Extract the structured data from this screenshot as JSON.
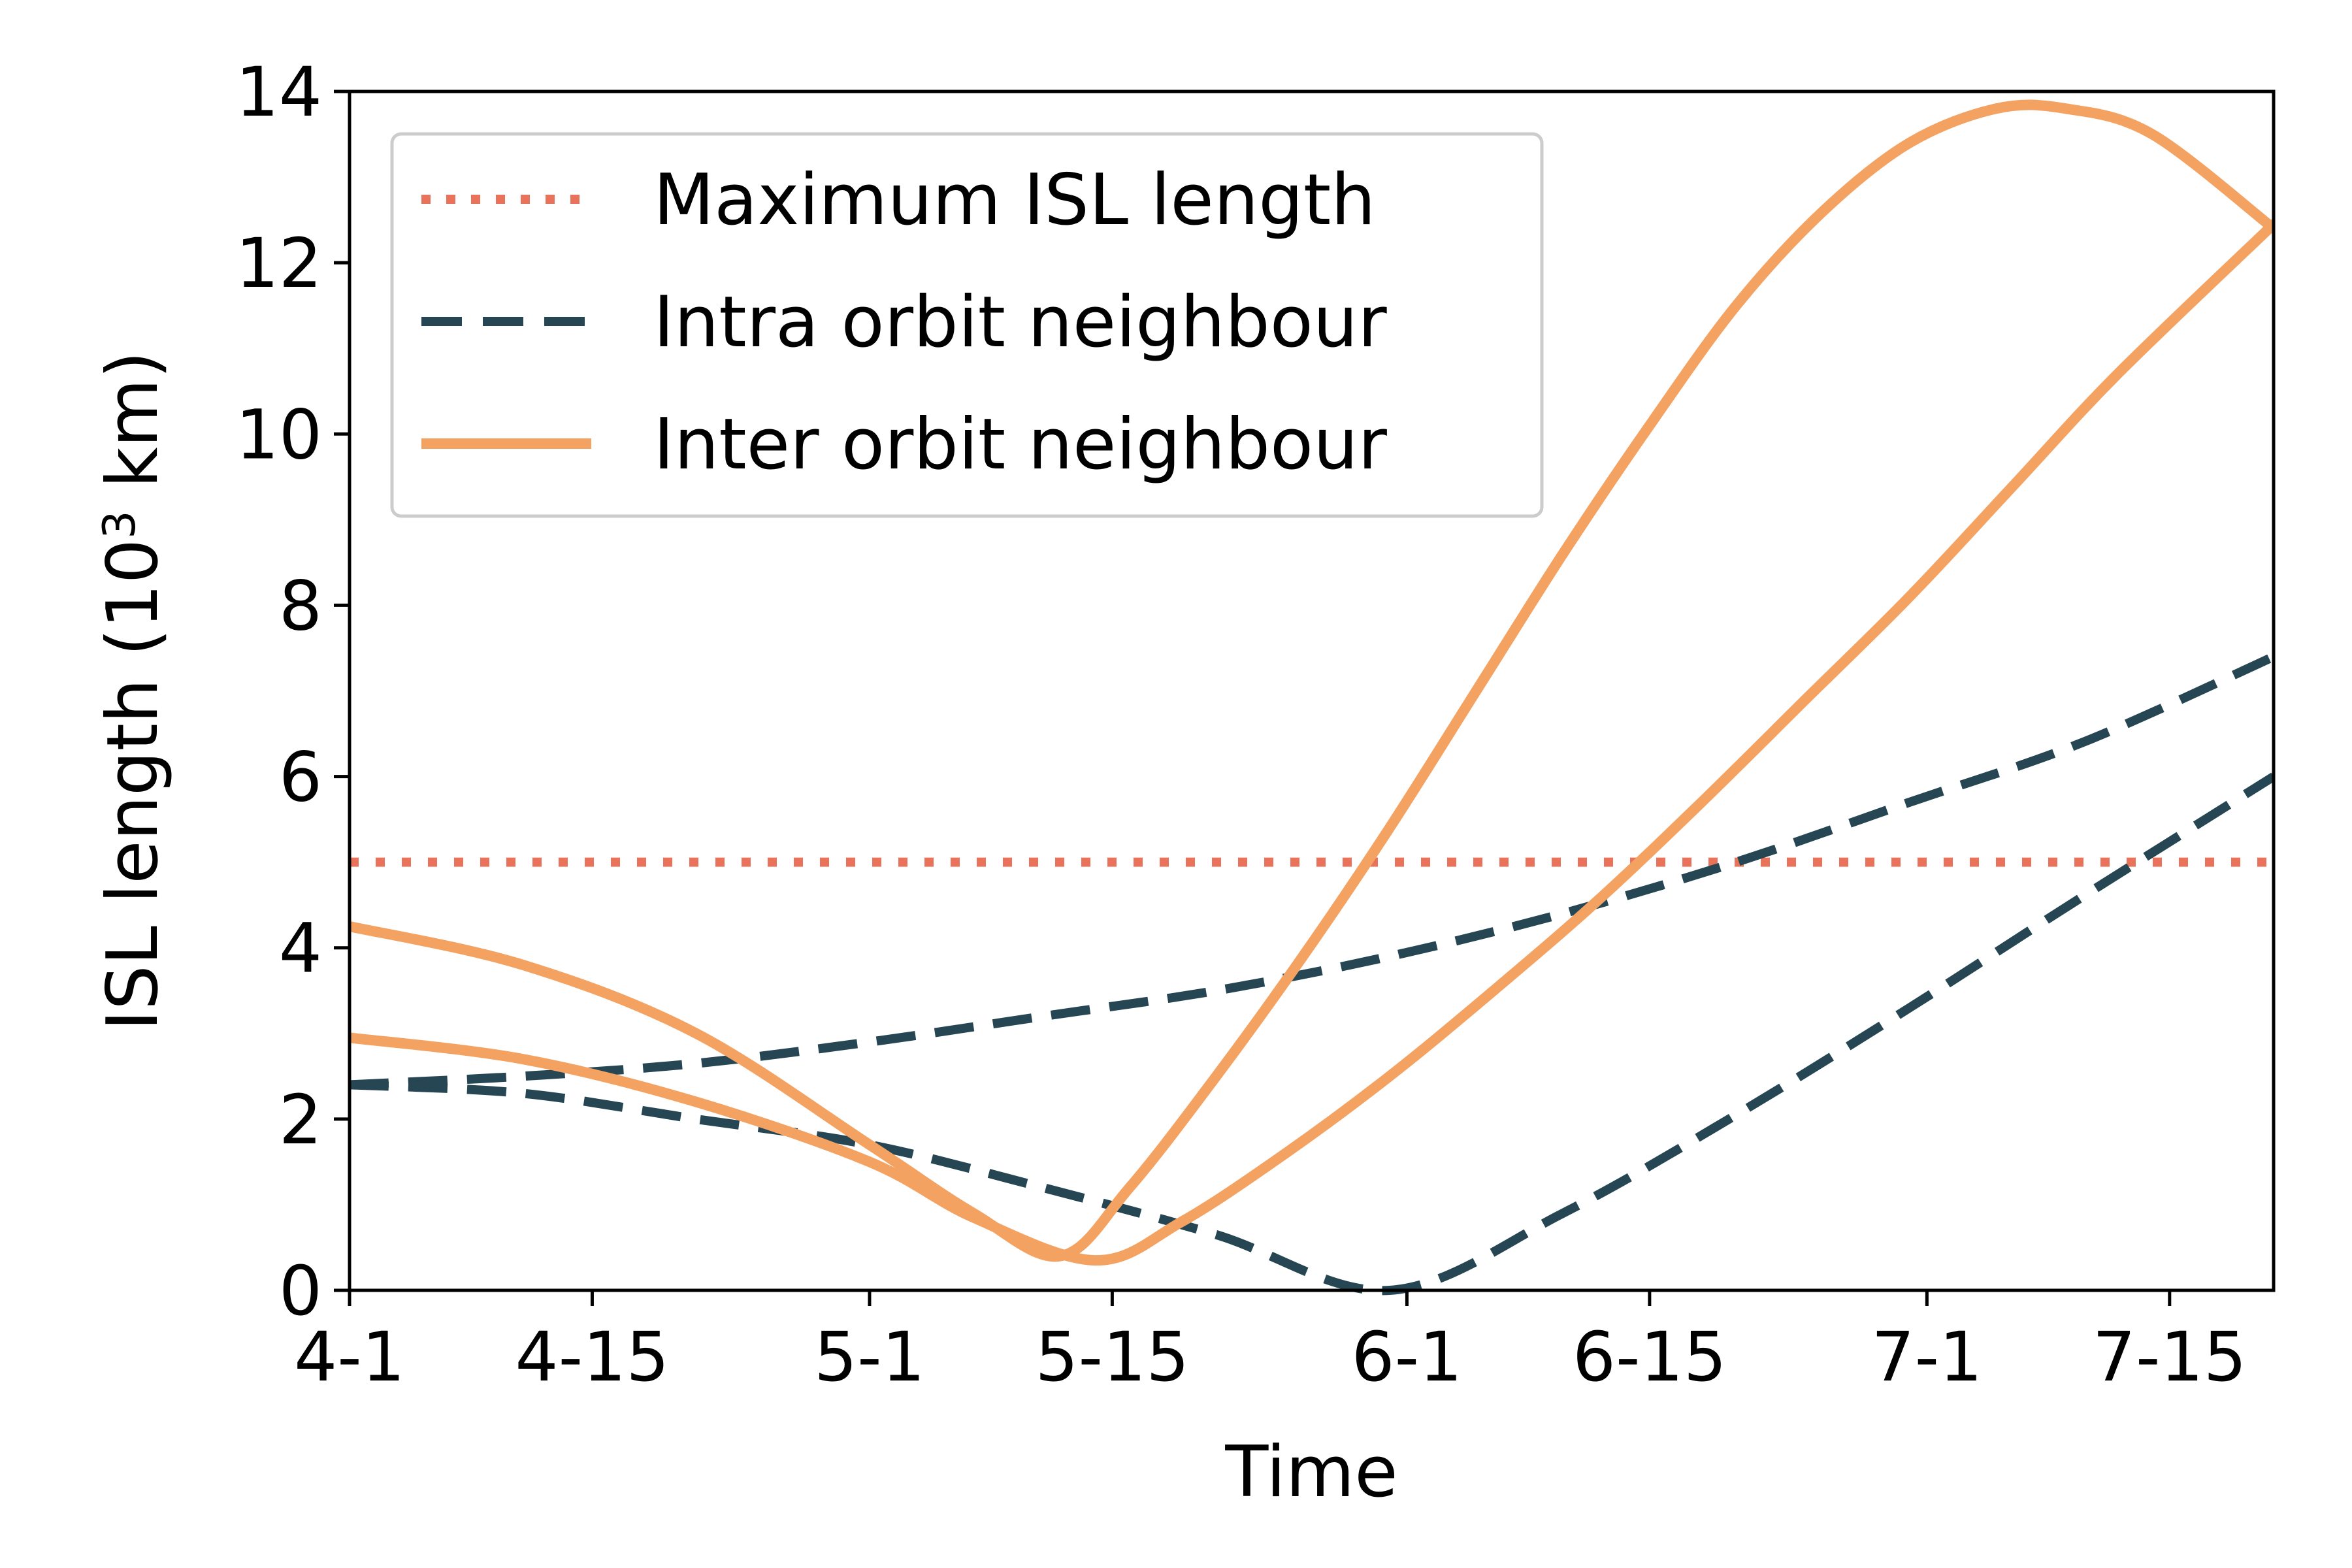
{
  "chart_data": {
    "type": "line",
    "xlabel": "Time",
    "ylabel": "ISL length (10³ km)",
    "ylabel_parts": {
      "before": "ISL length (10",
      "sup": "3",
      "after": " km)"
    },
    "x_ticks": [
      "4-1",
      "4-15",
      "5-1",
      "5-15",
      "6-1",
      "6-15",
      "7-1",
      "7-15"
    ],
    "x_tick_dates": [
      "2000-04-01",
      "2000-04-15",
      "2000-05-01",
      "2000-05-15",
      "2000-06-01",
      "2000-06-15",
      "2000-07-01",
      "2000-07-15"
    ],
    "xlim": [
      "2000-04-01",
      "2000-07-21"
    ],
    "y_ticks": [
      0,
      2,
      4,
      6,
      8,
      10,
      12,
      14
    ],
    "ylim": [
      0,
      14
    ],
    "grid": false,
    "legend_position": "upper-left",
    "series": [
      {
        "name": "Maximum ISL length",
        "style": "dotted",
        "color": "#E8735A",
        "x": [
          "2000-04-01",
          "2000-07-21"
        ],
        "y": [
          5,
          5
        ]
      },
      {
        "name": "Intra orbit neighbour",
        "style": "dashed",
        "color": "#264653",
        "x": [
          "2000-04-01",
          "2000-04-11",
          "2000-04-21",
          "2000-05-01",
          "2000-05-11",
          "2000-05-21",
          "2000-05-31",
          "2000-06-10",
          "2000-06-20",
          "2000-06-30",
          "2000-07-10",
          "2000-07-21"
        ],
        "y": [
          2.4,
          2.5,
          2.65,
          2.9,
          3.2,
          3.5,
          3.9,
          4.4,
          5.0,
          5.7,
          6.4,
          7.4
        ]
      },
      {
        "name": "",
        "style": "dashed",
        "color": "#264653",
        "x": [
          "2000-04-01",
          "2000-04-11",
          "2000-04-21",
          "2000-05-01",
          "2000-05-11",
          "2000-05-21",
          "2000-05-31",
          "2000-06-10",
          "2000-06-20",
          "2000-06-30",
          "2000-07-10",
          "2000-07-21"
        ],
        "y": [
          2.4,
          2.3,
          2.0,
          1.7,
          1.2,
          0.65,
          0.0,
          0.9,
          2.05,
          3.3,
          4.6,
          6.0
        ]
      },
      {
        "name": "Inter orbit neighbour",
        "style": "solid",
        "color": "#F4A261",
        "x": [
          "2000-04-01",
          "2000-04-11",
          "2000-04-21",
          "2000-05-01",
          "2000-05-07",
          "2000-05-12",
          "2000-05-16",
          "2000-05-21",
          "2000-05-26",
          "2000-05-31",
          "2000-06-05",
          "2000-06-10",
          "2000-06-15",
          "2000-06-20",
          "2000-06-25",
          "2000-06-30",
          "2000-07-05",
          "2000-07-09",
          "2000-07-14",
          "2000-07-21"
        ],
        "y": [
          4.25,
          3.8,
          3.0,
          1.7,
          0.9,
          0.4,
          1.2,
          2.5,
          3.9,
          5.4,
          7.0,
          8.6,
          10.1,
          11.5,
          12.6,
          13.4,
          13.8,
          13.8,
          13.5,
          12.4
        ]
      },
      {
        "name": "",
        "style": "solid",
        "color": "#F4A261",
        "x": [
          "2000-04-01",
          "2000-04-11",
          "2000-04-21",
          "2000-05-01",
          "2000-05-07",
          "2000-05-14",
          "2000-05-19",
          "2000-05-25",
          "2000-05-31",
          "2000-06-06",
          "2000-06-12",
          "2000-06-18",
          "2000-06-24",
          "2000-06-30",
          "2000-07-06",
          "2000-07-12",
          "2000-07-21"
        ],
        "y": [
          2.95,
          2.7,
          2.2,
          1.5,
          0.85,
          0.35,
          0.8,
          1.6,
          2.5,
          3.5,
          4.55,
          5.7,
          6.9,
          8.1,
          9.4,
          10.7,
          12.45
        ]
      }
    ]
  }
}
